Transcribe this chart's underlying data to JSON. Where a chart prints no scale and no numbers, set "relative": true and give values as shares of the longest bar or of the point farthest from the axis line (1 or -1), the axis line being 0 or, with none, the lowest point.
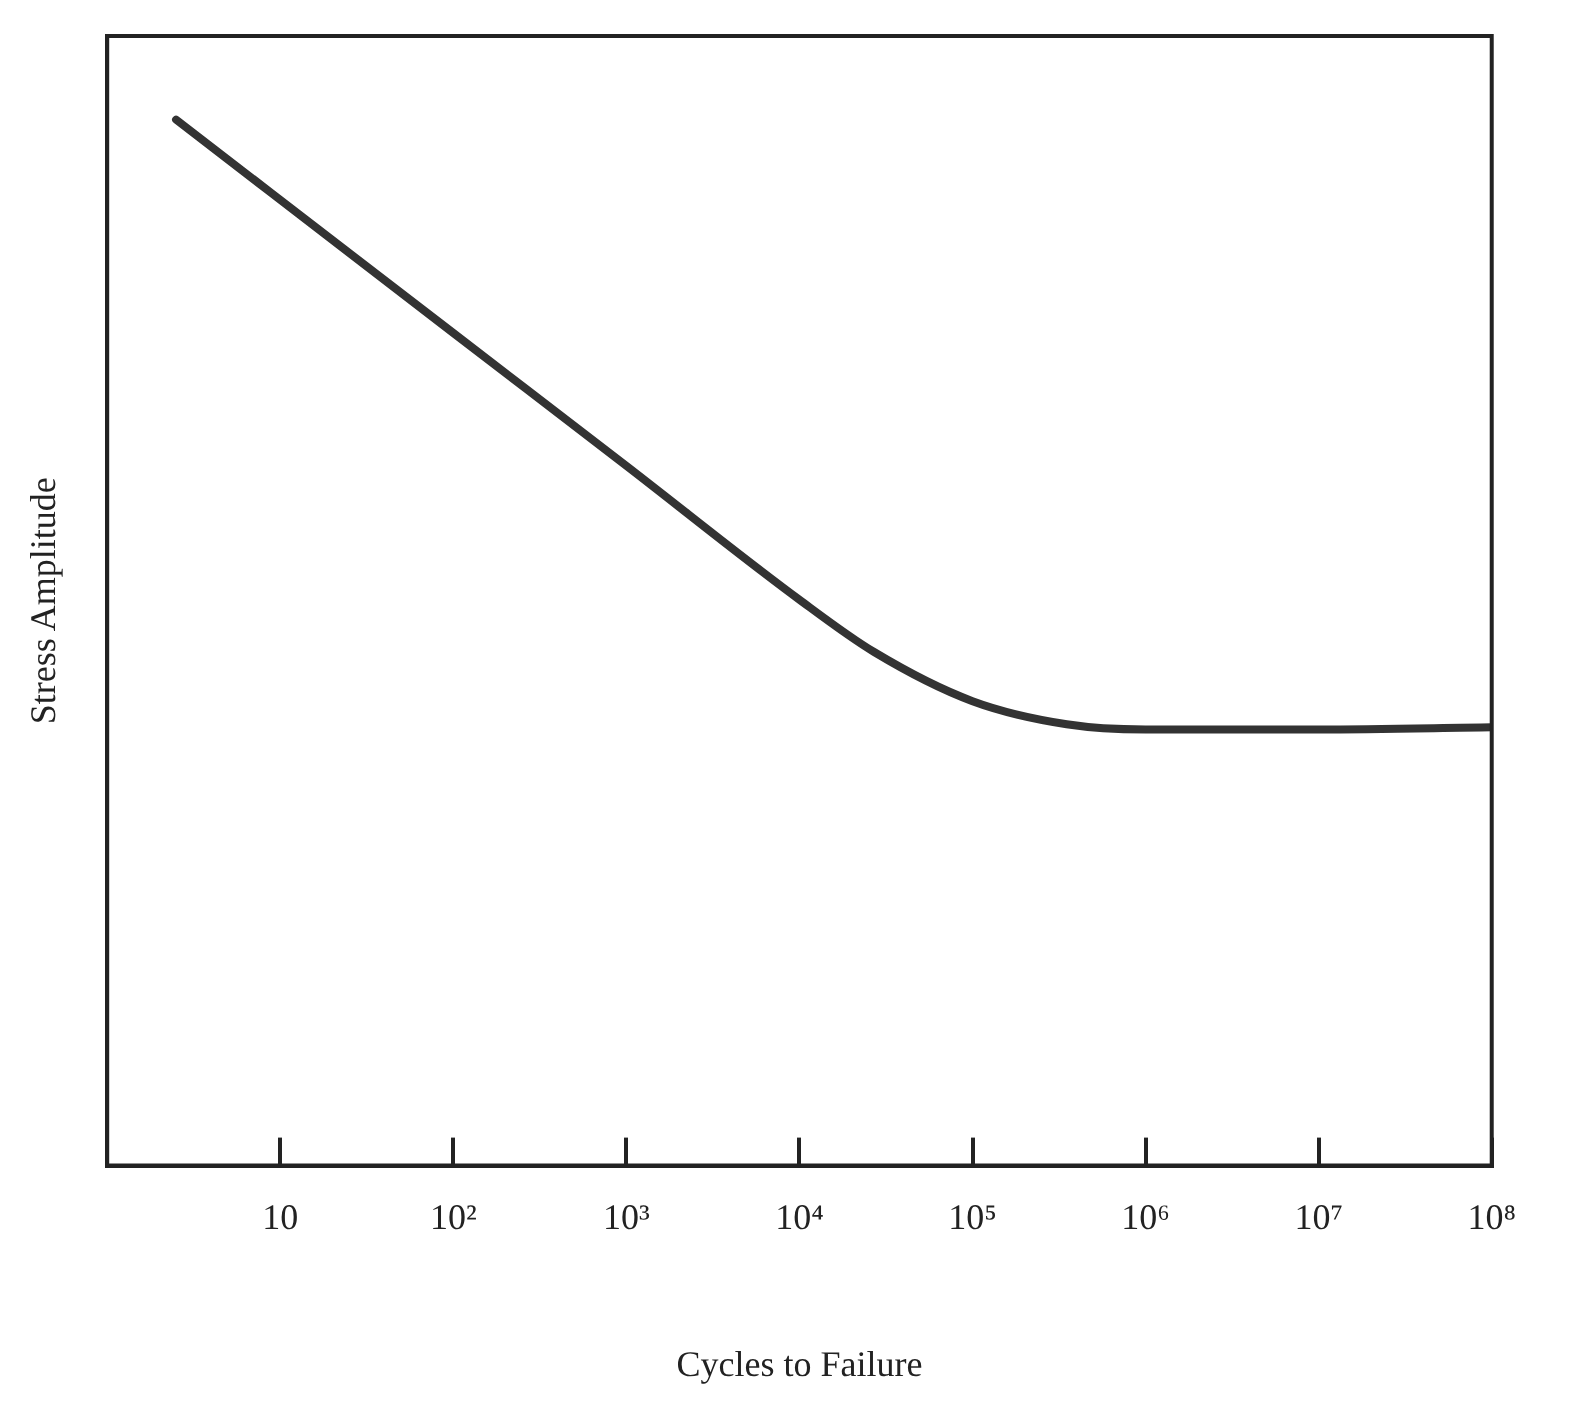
{
  "chart_data": {
    "type": "line",
    "xlabel": "Cycles to Failure",
    "ylabel": "Stress Amplitude",
    "relative": true,
    "log": "x",
    "grid": false,
    "legend": false,
    "marker": "none",
    "line_style": "solid",
    "xlim": [
      1,
      100000000
    ],
    "xticks": [
      10,
      {
        "value": 100,
        "label": "10²"
      },
      {
        "value": 1000,
        "label": "10³"
      },
      {
        "value": 10000,
        "label": "10⁴"
      },
      {
        "value": 100000,
        "label": "10⁵"
      },
      {
        "value": 1000000,
        "label": "10⁶"
      },
      {
        "value": 10000000,
        "label": "10⁷"
      },
      {
        "value": 100000000,
        "label": "10⁸"
      }
    ],
    "series": [
      {
        "color": "#333333",
        "x": [
          2.5,
          100,
          1000,
          10000,
          27000,
          100000,
          350000,
          1000000,
          10000000,
          100000000
        ],
        "values": [
          1,
          0.796,
          0.669,
          0.541,
          0.491,
          0.444,
          0.422,
          0.417,
          0.417,
          0.419
        ]
      }
    ]
  }
}
